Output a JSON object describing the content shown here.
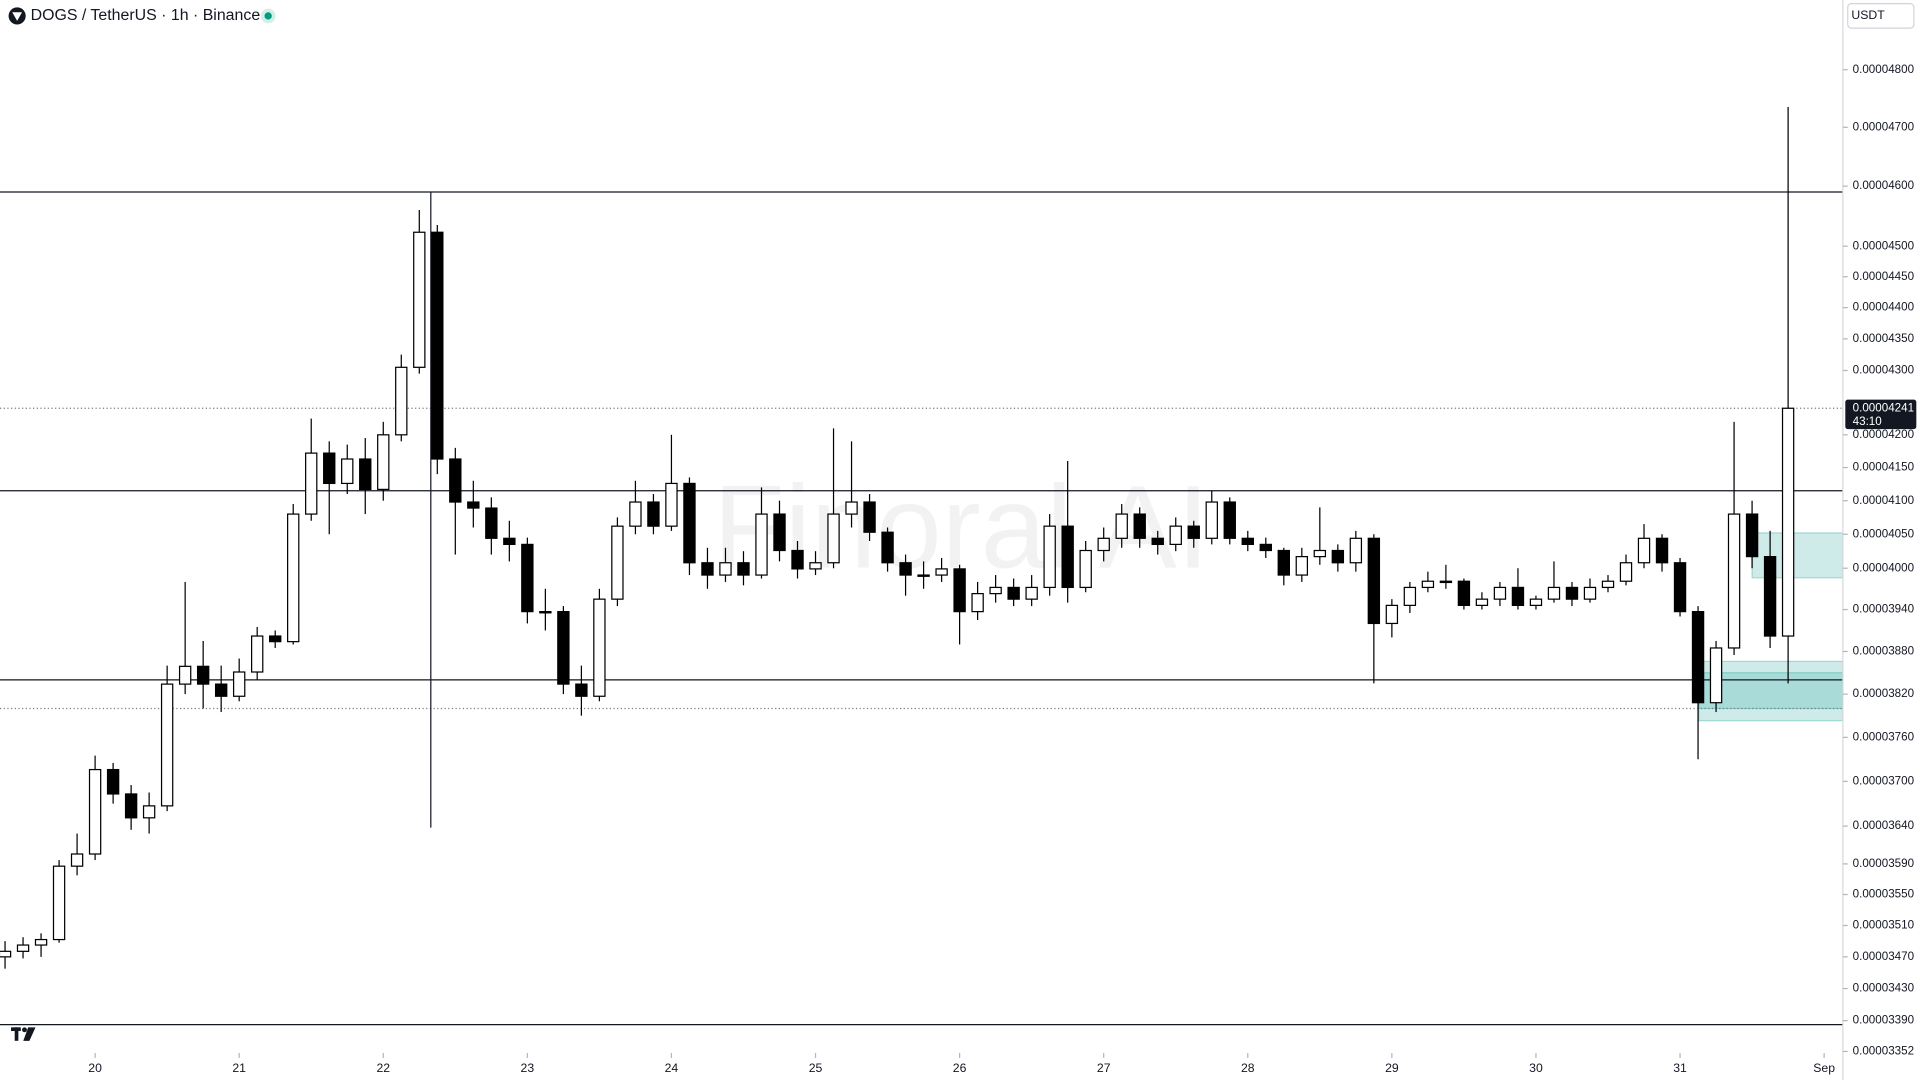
{
  "chart_data": {
    "type": "candlestick",
    "title": "DOGS / TetherUS · 1h · Binance",
    "currency": "USDT",
    "watermark": "Finoral AI",
    "last_price": {
      "value": 4.241e-05,
      "label": "0.00004241"
    },
    "countdown": "43:10",
    "log_scale": true,
    "up_color": "#ffffff",
    "down_color": "#000000",
    "zone_color": "#26a69a",
    "xlim": [
      19.34,
      32.13
    ],
    "xticks": [
      20,
      21,
      22,
      23,
      24,
      25,
      26,
      27,
      28,
      29,
      30,
      31,
      {
        "value": 32,
        "label": "Sep"
      }
    ],
    "ylim": [
      3.35e-05,
      4.924e-05
    ],
    "yticks": [
      {
        "value": 4.8e-05,
        "label": "0.00004800"
      },
      {
        "value": 4.7e-05,
        "label": "0.00004700"
      },
      {
        "value": 4.6e-05,
        "label": "0.00004600"
      },
      {
        "value": 4.5e-05,
        "label": "0.00004500"
      },
      {
        "value": 4.45e-05,
        "label": "0.00004450"
      },
      {
        "value": 4.4e-05,
        "label": "0.00004400"
      },
      {
        "value": 4.35e-05,
        "label": "0.00004350"
      },
      {
        "value": 4.3e-05,
        "label": "0.00004300"
      },
      {
        "value": 4.2e-05,
        "label": "0.00004200"
      },
      {
        "value": 4.15e-05,
        "label": "0.00004150"
      },
      {
        "value": 4.1e-05,
        "label": "0.00004100"
      },
      {
        "value": 4.05e-05,
        "label": "0.00004050"
      },
      {
        "value": 4e-05,
        "label": "0.00004000"
      },
      {
        "value": 3.94e-05,
        "label": "0.00003940"
      },
      {
        "value": 3.88e-05,
        "label": "0.00003880"
      },
      {
        "value": 3.82e-05,
        "label": "0.00003820"
      },
      {
        "value": 3.76e-05,
        "label": "0.00003760"
      },
      {
        "value": 3.7e-05,
        "label": "0.00003700"
      },
      {
        "value": 3.64e-05,
        "label": "0.00003640"
      },
      {
        "value": 3.59e-05,
        "label": "0.00003590"
      },
      {
        "value": 3.55e-05,
        "label": "0.00003550"
      },
      {
        "value": 3.51e-05,
        "label": "0.00003510"
      },
      {
        "value": 3.47e-05,
        "label": "0.00003470"
      },
      {
        "value": 3.43e-05,
        "label": "0.00003430"
      },
      {
        "value": 3.39e-05,
        "label": "0.00003390"
      },
      {
        "value": 3.352e-05,
        "label": "0.00003352"
      }
    ],
    "horizontal_lines": [
      4.59e-05,
      4.115e-05,
      3.84e-05,
      3.385e-05
    ],
    "dotted_lines": [
      4.241e-05,
      3.8e-05
    ],
    "vertical_line": {
      "x": 22.33,
      "from": 4.59e-05,
      "to": 3.638e-05
    },
    "zones": [
      {
        "x0": 31.5,
        "top": 4.052e-05,
        "bottom": 3.986e-05
      },
      {
        "x0": 31.13,
        "top": 3.866e-05,
        "bottom": 3.783e-05
      },
      {
        "x0": 31.13,
        "top": 3.85e-05,
        "bottom": 3.8e-05
      }
    ],
    "x": [
      19.375,
      19.5,
      19.625,
      19.75,
      19.875,
      20,
      20.125,
      20.25,
      20.375,
      20.5,
      20.625,
      20.75,
      20.875,
      21,
      21.125,
      21.25,
      21.375,
      21.5,
      21.625,
      21.75,
      21.875,
      22,
      22.125,
      22.25,
      22.375,
      22.5,
      22.625,
      22.75,
      22.875,
      23,
      23.125,
      23.25,
      23.375,
      23.5,
      23.625,
      23.75,
      23.875,
      24,
      24.125,
      24.25,
      24.375,
      24.5,
      24.625,
      24.75,
      24.875,
      25,
      25.125,
      25.25,
      25.375,
      25.5,
      25.625,
      25.75,
      25.875,
      26,
      26.125,
      26.25,
      26.375,
      26.5,
      26.625,
      26.75,
      26.875,
      27,
      27.125,
      27.25,
      27.375,
      27.5,
      27.625,
      27.75,
      27.875,
      28,
      28.125,
      28.25,
      28.375,
      28.5,
      28.625,
      28.75,
      28.875,
      29,
      29.125,
      29.25,
      29.375,
      29.5,
      29.625,
      29.75,
      29.875,
      30,
      30.125,
      30.25,
      30.375,
      30.5,
      30.625,
      30.75,
      30.875,
      31,
      31.125,
      31.25,
      31.375,
      31.5,
      31.625,
      31.75
    ],
    "open": [
      3.47e-05,
      3.477e-05,
      3.485e-05,
      3.492e-05,
      3.587e-05,
      3.603e-05,
      3.716e-05,
      3.683e-05,
      3.651e-05,
      3.667e-05,
      3.834e-05,
      3.859e-05,
      3.834e-05,
      3.817e-05,
      3.851e-05,
      3.902e-05,
      3.894e-05,
      4.08e-05,
      4.172e-05,
      4.126e-05,
      4.163e-05,
      4.117e-05,
      4.2e-05,
      4.305e-05,
      4.523e-05,
      4.163e-05,
      4.098e-05,
      4.089e-05,
      4.044e-05,
      4.035e-05,
      3.937e-05,
      3.937e-05,
      3.834e-05,
      3.817e-05,
      3.955e-05,
      4.062e-05,
      4.098e-05,
      4.062e-05,
      4.126e-05,
      4.008e-05,
      3.99e-05,
      4.008e-05,
      3.99e-05,
      4.08e-05,
      4.026e-05,
      3.999e-05,
      4.008e-05,
      4.08e-05,
      4.098e-05,
      4.053e-05,
      4.008e-05,
      3.99e-05,
      3.99e-05,
      3.999e-05,
      3.937e-05,
      3.963e-05,
      3.972e-05,
      3.955e-05,
      3.972e-05,
      4.062e-05,
      3.972e-05,
      4.026e-05,
      4.044e-05,
      4.08e-05,
      4.044e-05,
      4.035e-05,
      4.062e-05,
      4.044e-05,
      4.098e-05,
      4.044e-05,
      4.035e-05,
      4.026e-05,
      3.99e-05,
      4.017e-05,
      4.026e-05,
      4.008e-05,
      4.044e-05,
      3.92e-05,
      3.946e-05,
      3.972e-05,
      3.981e-05,
      3.981e-05,
      3.946e-05,
      3.955e-05,
      3.972e-05,
      3.946e-05,
      3.955e-05,
      3.972e-05,
      3.955e-05,
      3.972e-05,
      3.981e-05,
      4.008e-05,
      4.044e-05,
      4.008e-05,
      3.937e-05,
      3.808e-05,
      3.885e-05,
      4.08e-05,
      4.017e-05,
      3.902e-05
    ],
    "high": [
      3.49e-05,
      3.495e-05,
      3.5e-05,
      3.595e-05,
      3.63e-05,
      3.735e-05,
      3.725e-05,
      3.695e-05,
      3.685e-05,
      3.86e-05,
      3.98e-05,
      3.895e-05,
      3.86e-05,
      3.87e-05,
      3.915e-05,
      3.91e-05,
      4.095e-05,
      4.225e-05,
      4.19e-05,
      4.185e-05,
      4.195e-05,
      4.22e-05,
      4.325e-05,
      4.56e-05,
      4.535e-05,
      4.18e-05,
      4.13e-05,
      4.105e-05,
      4.07e-05,
      4.045e-05,
      3.97e-05,
      3.945e-05,
      3.86e-05,
      3.97e-05,
      4.075e-05,
      4.13e-05,
      4.11e-05,
      4.2e-05,
      4.135e-05,
      4.03e-05,
      4.03e-05,
      4.025e-05,
      4.12e-05,
      4.1e-05,
      4.04e-05,
      4.025e-05,
      4.21e-05,
      4.19e-05,
      4.11e-05,
      4.06e-05,
      4.02e-05,
      4.01e-05,
      4.015e-05,
      4.005e-05,
      3.98e-05,
      3.99e-05,
      3.985e-05,
      3.99e-05,
      4.08e-05,
      4.16e-05,
      4.04e-05,
      4.06e-05,
      4.095e-05,
      4.09e-05,
      4.055e-05,
      4.075e-05,
      4.07e-05,
      4.115e-05,
      4.105e-05,
      4.055e-05,
      4.045e-05,
      4.03e-05,
      4.03e-05,
      4.09e-05,
      4.035e-05,
      4.055e-05,
      4.05e-05,
      3.955e-05,
      3.98e-05,
      3.995e-05,
      4.005e-05,
      3.985e-05,
      3.965e-05,
      3.98e-05,
      4e-05,
      3.96e-05,
      4.01e-05,
      3.98e-05,
      3.985e-05,
      3.99e-05,
      4.02e-05,
      4.065e-05,
      4.05e-05,
      4.015e-05,
      3.945e-05,
      3.895e-05,
      4.22e-05,
      4.1e-05,
      4.055e-05,
      4.735e-05
    ],
    "low": [
      3.455e-05,
      3.468e-05,
      3.47e-05,
      3.488e-05,
      3.575e-05,
      3.595e-05,
      3.67e-05,
      3.635e-05,
      3.63e-05,
      3.66e-05,
      3.82e-05,
      3.8e-05,
      3.795e-05,
      3.81e-05,
      3.84e-05,
      3.885e-05,
      3.89e-05,
      4.07e-05,
      4.05e-05,
      4.11e-05,
      4.08e-05,
      4.1e-05,
      4.19e-05,
      4.295e-05,
      4.14e-05,
      4.02e-05,
      4.06e-05,
      4.02e-05,
      4.01e-05,
      3.92e-05,
      3.91e-05,
      3.82e-05,
      3.79e-05,
      3.81e-05,
      3.945e-05,
      4.05e-05,
      4.05e-05,
      4.055e-05,
      3.99e-05,
      3.97e-05,
      3.98e-05,
      3.975e-05,
      3.985e-05,
      4.01e-05,
      3.985e-05,
      3.99e-05,
      4e-05,
      4.06e-05,
      4.04e-05,
      3.995e-05,
      3.96e-05,
      3.97e-05,
      3.98e-05,
      3.89e-05,
      3.925e-05,
      3.95e-05,
      3.945e-05,
      3.945e-05,
      3.96e-05,
      3.95e-05,
      3.965e-05,
      4.01e-05,
      4.03e-05,
      4.03e-05,
      4.02e-05,
      4.025e-05,
      4.03e-05,
      4.035e-05,
      4.035e-05,
      4.025e-05,
      4.015e-05,
      3.975e-05,
      3.98e-05,
      4.005e-05,
      3.995e-05,
      3.995e-05,
      3.835e-05,
      3.9e-05,
      3.935e-05,
      3.965e-05,
      3.97e-05,
      3.94e-05,
      3.94e-05,
      3.945e-05,
      3.94e-05,
      3.94e-05,
      3.95e-05,
      3.945e-05,
      3.95e-05,
      3.965e-05,
      3.975e-05,
      4e-05,
      3.995e-05,
      3.93e-05,
      3.73e-05,
      3.795e-05,
      3.875e-05,
      4e-05,
      3.885e-05,
      3.835e-05
    ],
    "close": [
      3.477e-05,
      3.485e-05,
      3.492e-05,
      3.587e-05,
      3.603e-05,
      3.716e-05,
      3.683e-05,
      3.651e-05,
      3.667e-05,
      3.834e-05,
      3.859e-05,
      3.834e-05,
      3.817e-05,
      3.851e-05,
      3.902e-05,
      3.894e-05,
      4.08e-05,
      4.172e-05,
      4.126e-05,
      4.163e-05,
      4.117e-05,
      4.2e-05,
      4.305e-05,
      4.523e-05,
      4.163e-05,
      4.098e-05,
      4.089e-05,
      4.044e-05,
      4.035e-05,
      3.937e-05,
      3.937e-05,
      3.834e-05,
      3.817e-05,
      3.955e-05,
      4.062e-05,
      4.098e-05,
      4.062e-05,
      4.126e-05,
      4.008e-05,
      3.99e-05,
      4.008e-05,
      3.99e-05,
      4.08e-05,
      4.026e-05,
      3.999e-05,
      4.008e-05,
      4.08e-05,
      4.098e-05,
      4.053e-05,
      4.008e-05,
      3.99e-05,
      3.99e-05,
      3.999e-05,
      3.937e-05,
      3.963e-05,
      3.972e-05,
      3.955e-05,
      3.972e-05,
      4.062e-05,
      3.972e-05,
      4.026e-05,
      4.044e-05,
      4.08e-05,
      4.044e-05,
      4.035e-05,
      4.062e-05,
      4.044e-05,
      4.098e-05,
      4.044e-05,
      4.035e-05,
      4.026e-05,
      3.99e-05,
      4.017e-05,
      4.026e-05,
      4.008e-05,
      4.044e-05,
      3.92e-05,
      3.946e-05,
      3.972e-05,
      3.981e-05,
      3.981e-05,
      3.946e-05,
      3.955e-05,
      3.972e-05,
      3.946e-05,
      3.955e-05,
      3.972e-05,
      3.955e-05,
      3.972e-05,
      3.981e-05,
      4.008e-05,
      4.044e-05,
      4.008e-05,
      3.937e-05,
      3.808e-05,
      3.885e-05,
      4.08e-05,
      4.017e-05,
      3.902e-05,
      4.241e-05
    ]
  }
}
